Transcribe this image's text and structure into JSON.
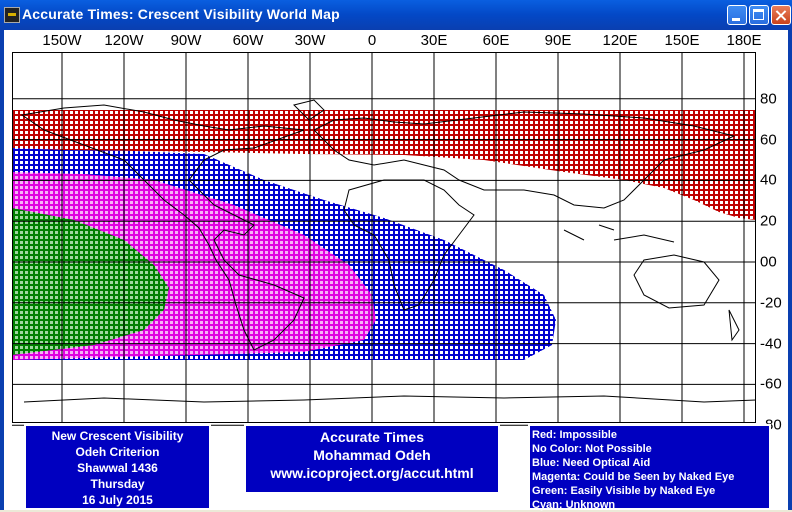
{
  "window": {
    "title": "Accurate Times: Crescent Visibility World Map"
  },
  "map": {
    "lon_labels": [
      "150W",
      "120W",
      "90W",
      "60W",
      "30W",
      "0",
      "30E",
      "60E",
      "90E",
      "120E",
      "150E",
      "180E"
    ],
    "lat_labels": [
      "80",
      "60",
      "40",
      "20",
      "00",
      "-20",
      "-40",
      "-60",
      "-80"
    ],
    "lat_values": [
      80,
      60,
      40,
      20,
      0,
      -20,
      -40,
      -60,
      -80
    ],
    "region_colors": {
      "impossible": "#c00000",
      "optical_aid": "#0000d0",
      "naked_eye": "#e000e0",
      "easily_visible": "#008000",
      "land_outline": "#000000",
      "grid": "#000000"
    }
  },
  "info_panel": {
    "line1": "New Crescent Visibility",
    "line2": "Odeh Criterion",
    "line3": "Shawwal 1436",
    "line4": "Thursday",
    "line5": "16 July 2015"
  },
  "credits_panel": {
    "line1": "Accurate Times",
    "line2": "Mohammad Odeh",
    "line3": "www.icoproject.org/accut.html"
  },
  "legend": {
    "red": "Red: Impossible",
    "none": "No Color: Not Possible",
    "blue": "Blue: Need Optical Aid",
    "magenta": "Magenta: Could be Seen by Naked Eye",
    "green": "Green: Easily Visible by Naked Eye",
    "cyan": "Cyan: Unknown"
  }
}
